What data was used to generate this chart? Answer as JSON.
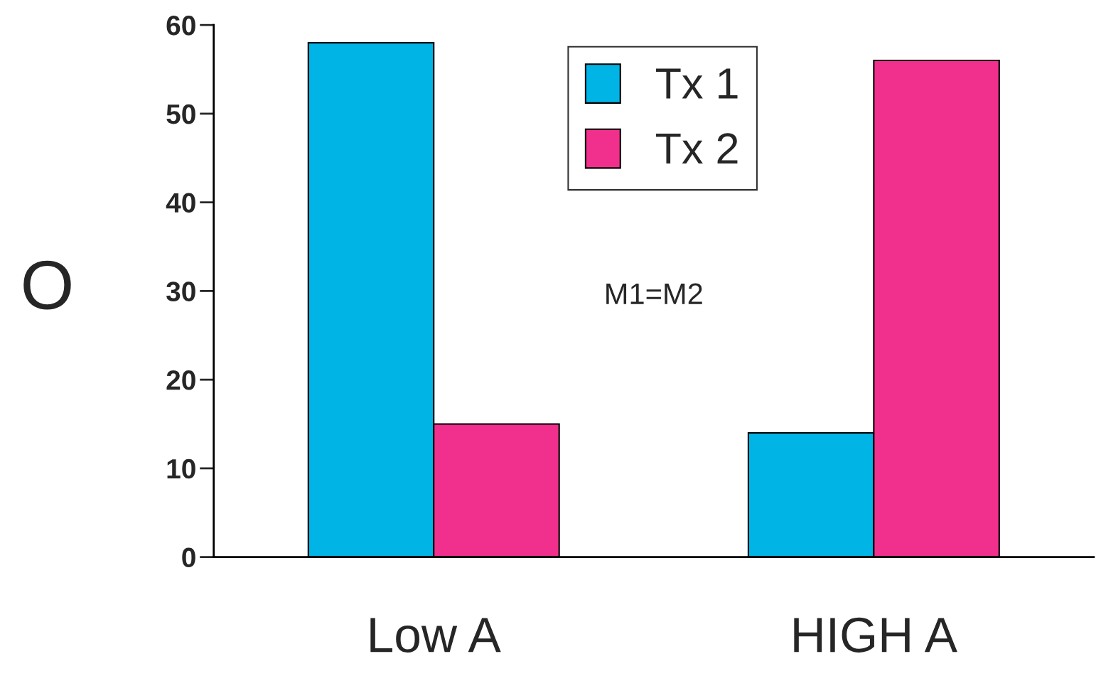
{
  "chart_data": {
    "type": "bar",
    "ylabel": "O",
    "categories": [
      "Low A",
      "HIGH A"
    ],
    "series": [
      {
        "name": "Tx 1",
        "color": "#00b4e6",
        "values": [
          58,
          14
        ]
      },
      {
        "name": "Tx 2",
        "color": "#f0308c",
        "values": [
          15,
          56
        ]
      }
    ],
    "ylim": [
      0,
      60
    ],
    "yticks": [
      0,
      10,
      20,
      30,
      40,
      50,
      60
    ],
    "annotations": [
      "M1=M2"
    ],
    "legend": "top",
    "grid": false
  }
}
